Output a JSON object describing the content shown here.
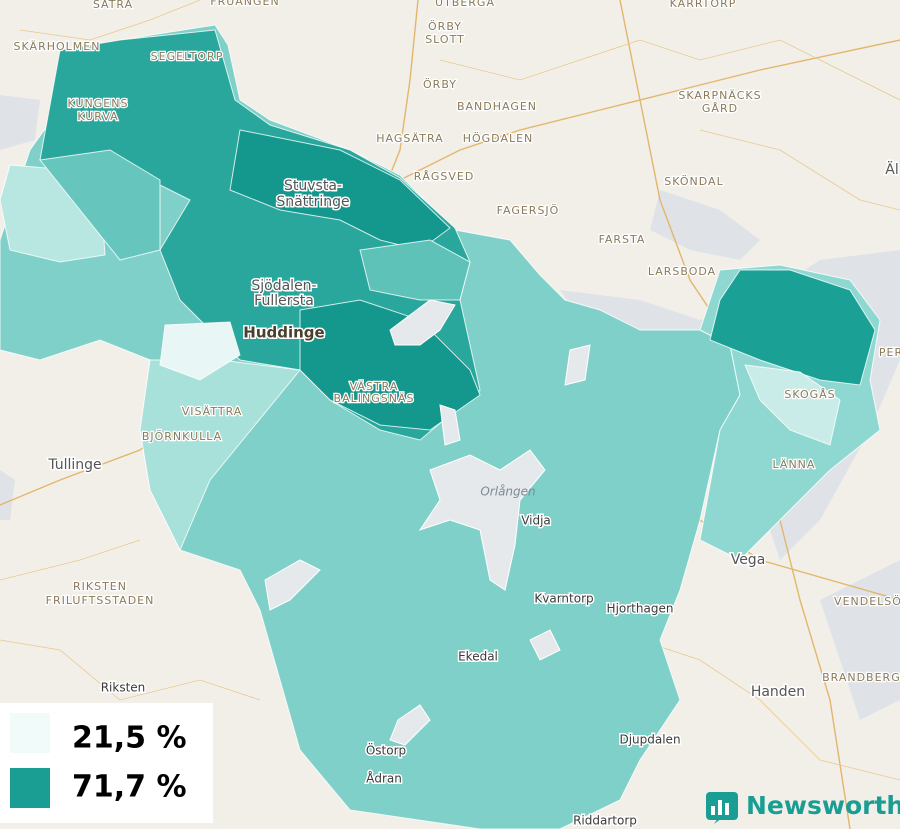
{
  "places": [
    "SÄTRA",
    "FRUÄNGEN",
    "UTBERGA",
    "KARRTORP",
    "SKÄRHOLMEN",
    "SEGELTORP",
    "KUNGENS",
    "KURVA",
    "ÖRBY",
    "SLOTT",
    "ÖRBY",
    "BANDHAGEN",
    "SKARPNÄCKS",
    "GÅRD",
    "HAGSÄTRA",
    "HÖGDALEN",
    "RÅGSVED",
    "SKÖNDAL",
    "FAGERSJÖ",
    "FARSTA",
    "LARSBODA",
    "Stuvsta-",
    "Snättringe",
    "Sjödalen-",
    "Fullersta",
    "Huddinge",
    "VÄSTRA",
    "BALINGSNÄS",
    "SKOGÅS",
    "VISÄTTRA",
    "BJÖRNKULLA",
    "Tullinge",
    "LÄNNA",
    "Orlången",
    "Vidja",
    "Vega",
    "Kvarntorp",
    "Hjorthagen",
    "RIKSTEN",
    "FRILUFTSSTADEN",
    "VENDELSÖ",
    "Ekedal",
    "Riksten",
    "Handen",
    "BRANDBERGEN",
    "Djupdalen",
    "Östorp",
    "Ådran",
    "Riddartorp",
    "Äl",
    "PER"
  ],
  "legend": {
    "items": [
      "21,5 %",
      "71,7 %"
    ]
  },
  "brand": "Newsworthy"
}
